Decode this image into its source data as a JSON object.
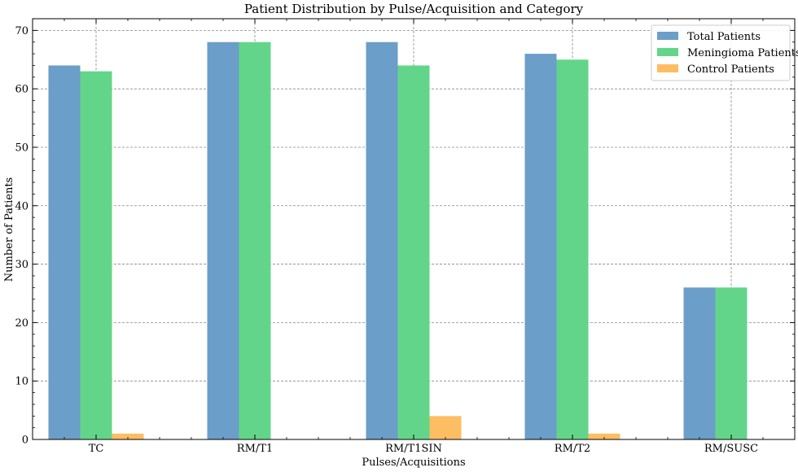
{
  "chart_data": {
    "type": "bar",
    "title": "Patient Distribution by Pulse/Acquisition and Category",
    "xlabel": "Pulses/Acquisitions",
    "ylabel": "Number of Patients",
    "categories": [
      "TC",
      "RM/T1",
      "RM/T1SIN",
      "RM/T2",
      "RM/SUSC"
    ],
    "series": [
      {
        "name": "Total Patients",
        "color": "#6b9ec8",
        "values": [
          64,
          68,
          68,
          66,
          26
        ]
      },
      {
        "name": "Meningioma Patients",
        "color": "#63d58a",
        "values": [
          63,
          68,
          64,
          65,
          26
        ]
      },
      {
        "name": "Control Patients",
        "color": "#fdbd63",
        "values": [
          1,
          0,
          4,
          1,
          0
        ]
      }
    ],
    "ylim": [
      0,
      72
    ],
    "yticks": [
      0,
      10,
      20,
      30,
      40,
      50,
      60,
      70
    ],
    "grid": true,
    "legend_position": "top-right"
  }
}
